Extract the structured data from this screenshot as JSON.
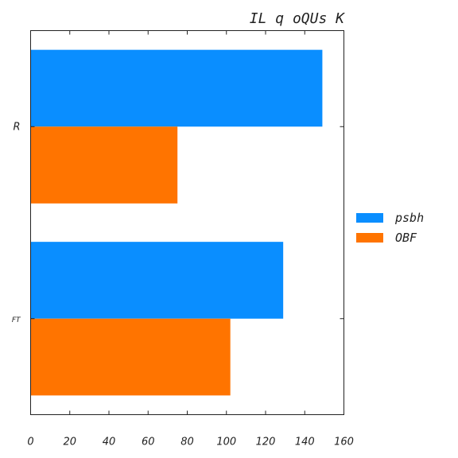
{
  "chart_data": {
    "type": "bar",
    "orientation": "horizontal",
    "title": "IL q oQUs K",
    "categories": [
      "R",
      "FT"
    ],
    "series": [
      {
        "name": "psbh",
        "values": [
          149,
          129
        ],
        "color": "#0a8eff"
      },
      {
        "name": "OBF",
        "values": [
          75,
          102
        ],
        "color": "#ff7400"
      }
    ],
    "xlim": [
      0,
      160
    ],
    "xticks": [
      0,
      20,
      40,
      60,
      80,
      100,
      120,
      140,
      160
    ],
    "xlabel": "",
    "ylabel": "",
    "grid": false,
    "legend_position": "right"
  }
}
